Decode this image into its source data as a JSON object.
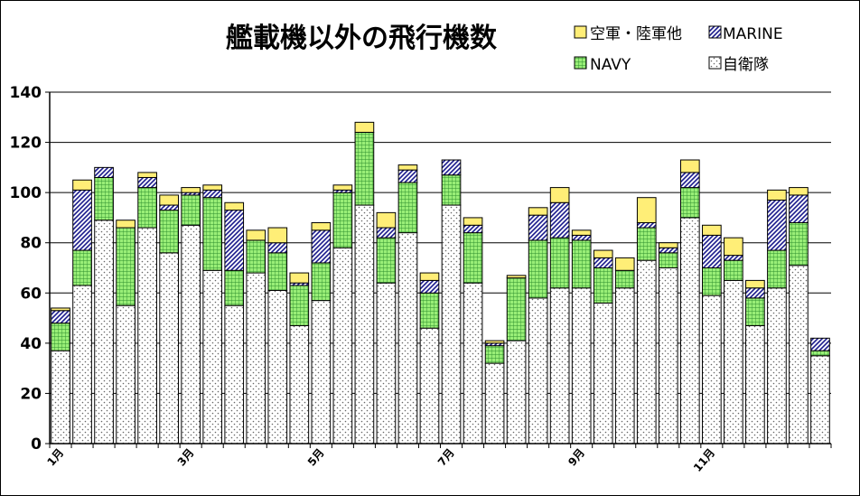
{
  "colors": {
    "self_defense": "#ffffff",
    "navy": "#99ee77",
    "marine": "#3333aa",
    "other": "#ffee77",
    "grid": "#000000",
    "axis": "#000000"
  },
  "chart_data": {
    "type": "bar",
    "stacked": true,
    "title": "艦載機以外の飛行機数",
    "xlabel": "",
    "ylabel": "",
    "ylim": [
      0,
      140
    ],
    "yticks": [
      0,
      20,
      40,
      60,
      80,
      100,
      120,
      140
    ],
    "grid": true,
    "legend_position": "top-right",
    "x_tick_labels": [
      {
        "index": 0,
        "label": "1月"
      },
      {
        "index": 6,
        "label": "3月"
      },
      {
        "index": 12,
        "label": "5月"
      },
      {
        "index": 18,
        "label": "7月"
      },
      {
        "index": 24,
        "label": "9月"
      },
      {
        "index": 30,
        "label": "11月"
      }
    ],
    "series": [
      {
        "name": "自衛隊",
        "key": "self_defense",
        "values": [
          37,
          63,
          89,
          55,
          86,
          76,
          87,
          69,
          55,
          68,
          61,
          47,
          57,
          78,
          95,
          64,
          84,
          46,
          95,
          64,
          32,
          41,
          58,
          62,
          62,
          56,
          62,
          73,
          70,
          90,
          59,
          65,
          47,
          62,
          71,
          35
        ]
      },
      {
        "name": "NAVY",
        "key": "navy",
        "values": [
          11,
          14,
          17,
          31,
          16,
          17,
          12,
          29,
          14,
          13,
          15,
          16,
          15,
          22,
          29,
          18,
          20,
          14,
          12,
          20,
          7,
          25,
          23,
          20,
          19,
          14,
          7,
          13,
          6,
          12,
          11,
          8,
          11,
          15,
          17,
          2
        ]
      },
      {
        "name": "MARINE",
        "key": "marine",
        "values": [
          5,
          24,
          4,
          0,
          4,
          2,
          1,
          3,
          24,
          0,
          4,
          1,
          13,
          1,
          0,
          4,
          5,
          5,
          6,
          3,
          1,
          0,
          10,
          14,
          2,
          4,
          0,
          2,
          2,
          6,
          13,
          2,
          4,
          20,
          11,
          5
        ]
      },
      {
        "name": "空軍・陸軍他",
        "key": "other",
        "values": [
          1,
          4,
          0,
          3,
          2,
          4,
          2,
          2,
          3,
          4,
          6,
          4,
          3,
          2,
          4,
          6,
          2,
          3,
          0,
          3,
          1,
          1,
          3,
          6,
          2,
          3,
          5,
          10,
          2,
          5,
          4,
          7,
          3,
          4,
          3,
          0
        ]
      }
    ]
  }
}
